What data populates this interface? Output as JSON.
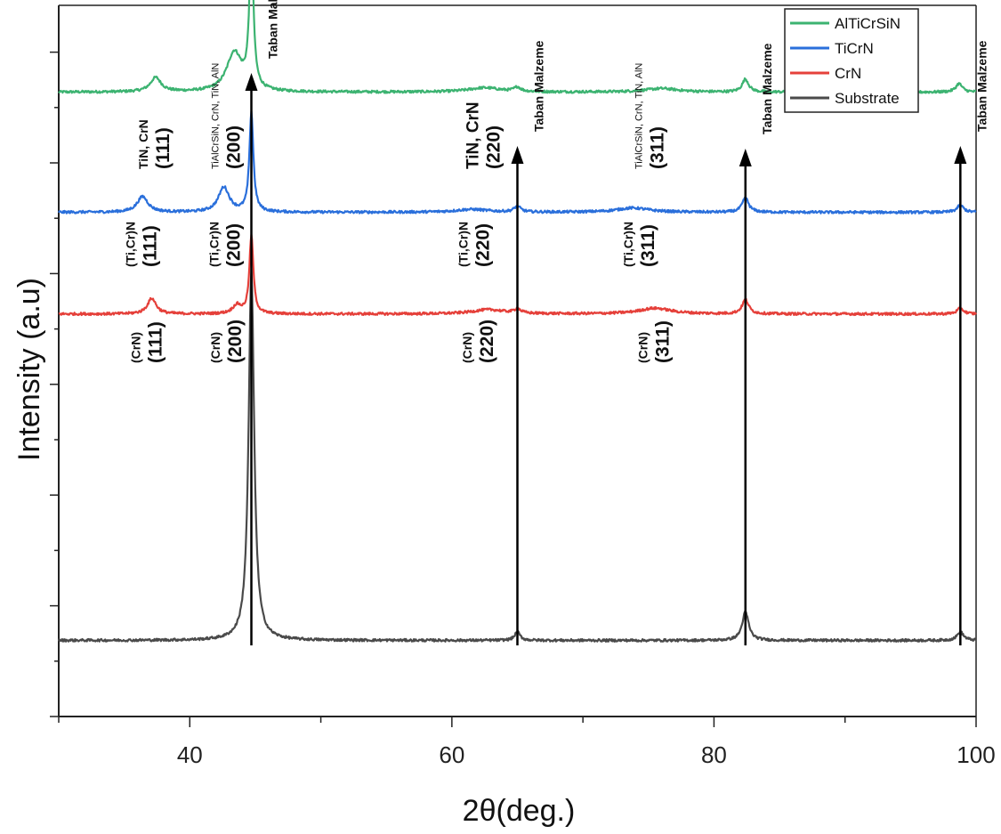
{
  "chart_data": {
    "type": "line",
    "xlabel": "2θ(deg.)",
    "ylabel": "Intensity (a.u)",
    "xlim": [
      30,
      100
    ],
    "x_ticks": [
      40,
      60,
      80,
      100
    ],
    "grid": false,
    "legend_position": "top-right",
    "series": [
      {
        "name": "AlTiCrSiN",
        "color": "#3cb371",
        "baseline": 0.878,
        "peaks": [
          [
            37.4,
            0.02,
            0.5
          ],
          [
            43.4,
            0.055,
            0.7
          ],
          [
            44.7,
            0.21,
            0.18
          ],
          [
            62.5,
            0.006,
            1.5
          ],
          [
            65.0,
            0.006,
            0.3
          ],
          [
            76.0,
            0.005,
            1.5
          ],
          [
            82.4,
            0.018,
            0.3
          ],
          [
            98.7,
            0.012,
            0.3
          ]
        ]
      },
      {
        "name": "TiCrN",
        "color": "#2a6fdb",
        "baseline": 0.709,
        "peaks": [
          [
            36.4,
            0.022,
            0.5
          ],
          [
            42.6,
            0.035,
            0.5
          ],
          [
            44.7,
            0.14,
            0.18
          ],
          [
            61.5,
            0.004,
            1.5
          ],
          [
            65.0,
            0.008,
            0.3
          ],
          [
            73.8,
            0.006,
            1.5
          ],
          [
            82.4,
            0.02,
            0.3
          ],
          [
            98.8,
            0.01,
            0.3
          ]
        ]
      },
      {
        "name": "CrN",
        "color": "#e5403a",
        "baseline": 0.566,
        "peaks": [
          [
            37.1,
            0.022,
            0.4
          ],
          [
            43.6,
            0.012,
            0.4
          ],
          [
            44.7,
            0.11,
            0.18
          ],
          [
            62.8,
            0.006,
            1.5
          ],
          [
            65.0,
            0.006,
            0.3
          ],
          [
            75.5,
            0.008,
            1.5
          ],
          [
            82.4,
            0.02,
            0.3
          ],
          [
            98.8,
            0.008,
            0.3
          ]
        ]
      },
      {
        "name": "Substrate",
        "color": "#4a4a4a",
        "baseline": 0.107,
        "peaks": [
          [
            44.7,
            0.52,
            0.25
          ],
          [
            65.0,
            0.012,
            0.25
          ],
          [
            82.4,
            0.04,
            0.3
          ],
          [
            98.8,
            0.012,
            0.3
          ]
        ]
      }
    ],
    "reference_lines": [
      {
        "x": 44.7,
        "label": "Taban Malzeme"
      },
      {
        "x": 65.0,
        "label": "Taban Malzeme"
      },
      {
        "x": 82.4,
        "label": "Taban Malzeme"
      },
      {
        "x": 98.8,
        "label": "Taban Malzeme"
      }
    ],
    "annotations": [
      {
        "series": "AlTiCrSiN",
        "x": 36.8,
        "phase": "TiN, CrN",
        "hkl": "(111)"
      },
      {
        "series": "AlTiCrSiN",
        "x": 42.2,
        "phase": "TiAlCrSiN, CrN, TiN, AlN",
        "hkl": "(200)"
      },
      {
        "series": "AlTiCrSiN",
        "x": 62.0,
        "phase": "TiN, CrN",
        "hkl": "(220)"
      },
      {
        "series": "AlTiCrSiN",
        "x": 74.5,
        "phase": "TiAlCrSiN, CrN, TiN, AlN",
        "hkl": "(311)"
      },
      {
        "series": "TiCrN",
        "x": 35.8,
        "phase": "(Ti,Cr)N",
        "hkl": "(111)"
      },
      {
        "series": "TiCrN",
        "x": 42.2,
        "phase": "(Ti,Cr)N",
        "hkl": "(200)"
      },
      {
        "series": "TiCrN",
        "x": 61.2,
        "phase": "(Ti,Cr)N",
        "hkl": "(220)"
      },
      {
        "series": "TiCrN",
        "x": 73.8,
        "phase": "(Ti,Cr)N",
        "hkl": "(311)"
      },
      {
        "series": "CrN",
        "x": 36.2,
        "phase": "(CrN)",
        "hkl": "(111)"
      },
      {
        "series": "CrN",
        "x": 42.3,
        "phase": "(CrN)",
        "hkl": "(200)"
      },
      {
        "series": "CrN",
        "x": 61.5,
        "phase": "(CrN)",
        "hkl": "(220)"
      },
      {
        "series": "CrN",
        "x": 74.9,
        "phase": "(CrN)",
        "hkl": "(311)"
      }
    ]
  }
}
